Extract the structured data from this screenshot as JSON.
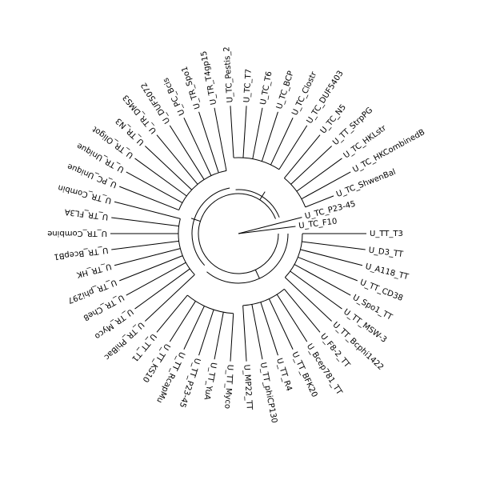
{
  "leaves": [
    "U_TT_T3",
    "U_D3_TT",
    "U_A118_TT",
    "U_TT_CD38",
    "U_Spo1_TT",
    "U_TT_MSW-3",
    "U_TT_Bcphi1422",
    "U_F8-2_TT",
    "U_Bcep781_TT",
    "U_TT_BFK20",
    "U_TT_R4",
    "U_TT_phiCP130",
    "U_MP22_TT",
    "U_TT_Myco",
    "U_TT_YuA",
    "U_TT_P23-45",
    "U_TT_RcapMu",
    "U_TT_KS10",
    "U_TT_T1",
    "U_TR_PhiBac",
    "U_TR_Myco",
    "U_TR_Che8",
    "U_TR_phi297",
    "U_TR_HK",
    "U_TR_BcepB1",
    "U_TR_Combine",
    "U_TR_FL3A",
    "U_TR_Combin",
    "U_PC_Unique",
    "U_TR_Unique",
    "U_TR_Oligot",
    "U_TR_N3",
    "U_TR_DMS3",
    "U_DUF5072",
    "U_PC_Bcis",
    "U_TR_Spo1",
    "U_TR_T4gp15",
    "U_TC_Pestis_2",
    "U_TC_T7",
    "U_TC_T6",
    "U_TC_BCP",
    "U_TC_Clostr",
    "U_TC_DUF5403",
    "U_TC_N5",
    "U_TT_StrpPG",
    "U_TC_HKLstr",
    "U_TC_HKCombinedB",
    "U_TC_ShwenBal",
    "U_TC_P23-45",
    "U_TC_F10"
  ]
}
